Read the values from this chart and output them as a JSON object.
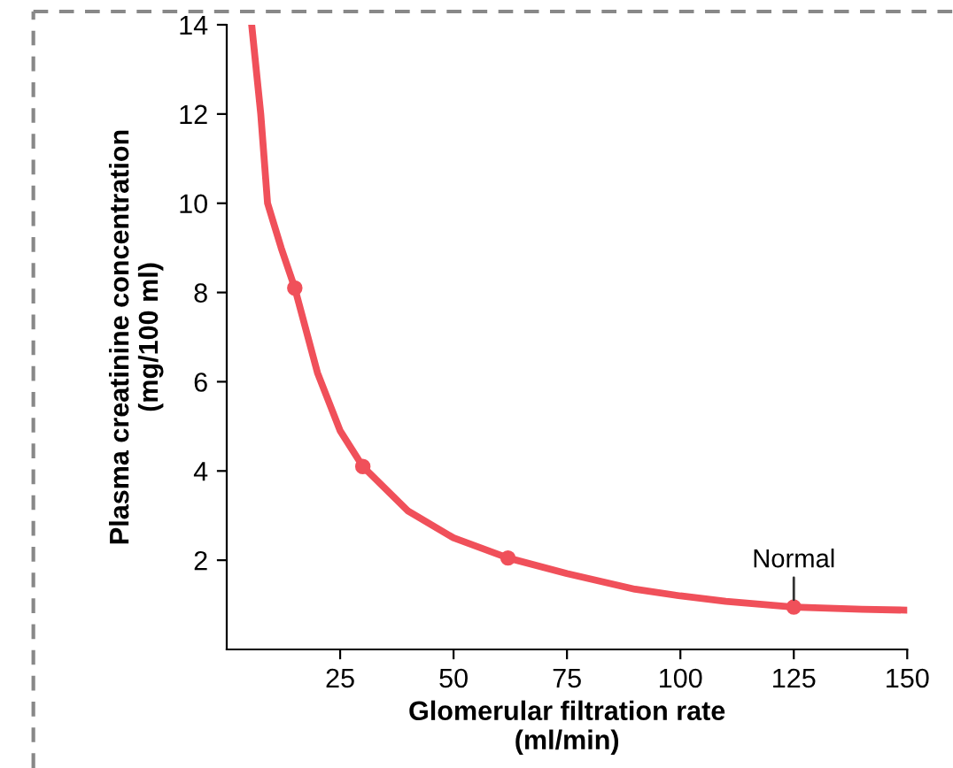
{
  "chart_data": {
    "type": "line",
    "xlabel": "Glomerular filtration rate\n(ml/min)",
    "ylabel": "Plasma creatinine concentration\n(mg/100 ml)",
    "xlim": [
      0,
      150
    ],
    "ylim": [
      0,
      14
    ],
    "xticks": [
      25,
      50,
      75,
      100,
      125,
      150
    ],
    "yticks": [
      2,
      4,
      6,
      8,
      10,
      12,
      14
    ],
    "grid": false,
    "legend": false,
    "series": [
      {
        "color": "#f0505a",
        "marker": "none",
        "x": [
          5.5,
          7.5,
          9,
          12,
          15,
          20,
          25,
          30,
          40,
          50,
          62,
          75,
          90,
          100,
          110,
          125,
          140,
          150
        ],
        "values": [
          14,
          12,
          10,
          9,
          8.1,
          6.2,
          4.9,
          4.1,
          3.1,
          2.5,
          2.05,
          1.7,
          1.35,
          1.2,
          1.08,
          0.95,
          0.9,
          0.88
        ]
      },
      {
        "type": "scatter",
        "color": "#f0505a",
        "marker": "circle",
        "x": [
          15,
          30,
          62,
          125
        ],
        "values": [
          8.1,
          4.1,
          2.05,
          0.95
        ]
      }
    ],
    "annotations": [
      {
        "text": "Normal",
        "x": 125,
        "y": 0.95
      }
    ]
  }
}
